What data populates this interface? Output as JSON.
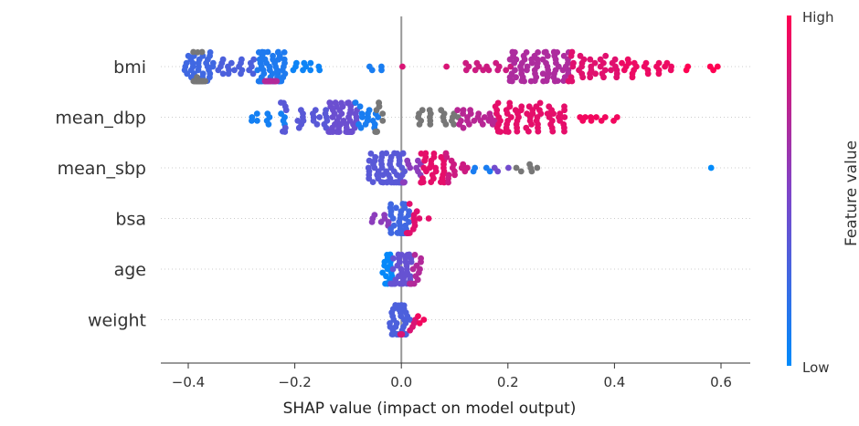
{
  "chart_data": {
    "type": "scatter",
    "subtype": "beeswarm",
    "title": "",
    "xlabel": "SHAP value (impact on model output)",
    "ylabel": "",
    "xlim": [
      -0.45,
      0.65
    ],
    "xticks": [
      -0.4,
      -0.2,
      0.0,
      0.2,
      0.4,
      0.6
    ],
    "xtick_labels": [
      "−0.4",
      "−0.2",
      "0.0",
      "0.2",
      "0.4",
      "0.6"
    ],
    "grid": false,
    "zero_line": true,
    "colorbar": {
      "label": "Feature value",
      "high_label": "High",
      "low_label": "Low",
      "low_color": "#008bfb",
      "mid_color": "#7f44c8",
      "high_color": "#ff0052"
    },
    "missing_value_color": "#777777",
    "features": [
      "bmi",
      "mean_dbp",
      "mean_sbp",
      "bsa",
      "age",
      "weight"
    ],
    "series": [
      {
        "feature": "bmi",
        "groups": [
          {
            "x": [
              -0.4,
              -0.385,
              -0.37,
              -0.355
            ],
            "n": 30,
            "fv": 0.25
          },
          {
            "x": [
              -0.385,
              -0.38,
              -0.375
            ],
            "n": 36,
            "fv": -1
          },
          {
            "x": [
              -0.34,
              -0.32,
              -0.3,
              -0.28
            ],
            "n": 20,
            "fv": 0.3
          },
          {
            "x": [
              -0.265,
              -0.255,
              -0.245,
              -0.235,
              -0.225
            ],
            "n": 60,
            "fv": 0.12
          },
          {
            "x": [
              -0.25,
              -0.24
            ],
            "n": 14,
            "fv": 0.7
          },
          {
            "x": [
              -0.2,
              -0.18,
              -0.165,
              -0.15
            ],
            "n": 10,
            "fv": 0.05
          },
          {
            "x": [
              -0.06,
              -0.035
            ],
            "n": 4,
            "fv": 0.1
          },
          {
            "x": [
              0.005,
              0.09
            ],
            "n": 2,
            "fv": 0.85
          },
          {
            "x": [
              0.12,
              0.14,
              0.16,
              0.18,
              0.2
            ],
            "n": 14,
            "fv": 0.8
          },
          {
            "x": [
              0.21,
              0.23,
              0.25,
              0.27,
              0.29,
              0.31
            ],
            "n": 70,
            "fv": 0.68
          },
          {
            "x": [
              0.32,
              0.34,
              0.36,
              0.38,
              0.4
            ],
            "n": 36,
            "fv": 0.88
          },
          {
            "x": [
              0.42,
              0.44,
              0.46,
              0.48,
              0.5
            ],
            "n": 22,
            "fv": 0.93
          },
          {
            "x": [
              0.54,
              0.58,
              0.59
            ],
            "n": 5,
            "fv": 1.0
          }
        ]
      },
      {
        "feature": "mean_dbp",
        "groups": [
          {
            "x": [
              -0.275,
              -0.25,
              -0.225
            ],
            "n": 12,
            "fv": 0.08
          },
          {
            "x": [
              -0.22,
              -0.19,
              -0.16,
              -0.14
            ],
            "n": 26,
            "fv": 0.35
          },
          {
            "x": [
              -0.13,
              -0.115,
              -0.1,
              -0.09
            ],
            "n": 60,
            "fv": 0.42
          },
          {
            "x": [
              -0.08,
              -0.065,
              -0.05
            ],
            "n": 16,
            "fv": 0.1
          },
          {
            "x": [
              -0.045,
              -0.04
            ],
            "n": 10,
            "fv": -1
          },
          {
            "x": [
              0.035,
              0.06,
              0.08,
              0.1
            ],
            "n": 20,
            "fv": -1
          },
          {
            "x": [
              0.11,
              0.13,
              0.15,
              0.17
            ],
            "n": 22,
            "fv": 0.72
          },
          {
            "x": [
              0.18,
              0.2,
              0.22,
              0.24,
              0.26,
              0.28,
              0.3
            ],
            "n": 65,
            "fv": 0.9
          },
          {
            "x": [
              0.34,
              0.36,
              0.38,
              0.4
            ],
            "n": 10,
            "fv": 0.95
          }
        ]
      },
      {
        "feature": "mean_sbp",
        "groups": [
          {
            "x": [
              -0.055,
              -0.04,
              -0.025,
              -0.01,
              0.0
            ],
            "n": 55,
            "fv": 0.35
          },
          {
            "x": [
              0.01,
              0.03
            ],
            "n": 10,
            "fv": 0.55
          },
          {
            "x": [
              0.04,
              0.06,
              0.08
            ],
            "n": 30,
            "fv": 0.9
          },
          {
            "x": [
              0.09,
              0.1,
              0.12
            ],
            "n": 14,
            "fv": 0.8
          },
          {
            "x": [
              0.14,
              0.16
            ],
            "n": 4,
            "fv": 0.1
          },
          {
            "x": [
              0.18,
              0.2
            ],
            "n": 3,
            "fv": 0.45
          },
          {
            "x": [
              0.22,
              0.245,
              0.25
            ],
            "n": 6,
            "fv": -1
          },
          {
            "x": [
              0.575
            ],
            "n": 1,
            "fv": 0.0
          }
        ]
      },
      {
        "feature": "bsa",
        "groups": [
          {
            "x": [
              -0.05,
              -0.035,
              -0.02
            ],
            "n": 8,
            "fv": 0.55
          },
          {
            "x": [
              -0.015,
              -0.005,
              0.005,
              0.01
            ],
            "n": 40,
            "fv": 0.25
          },
          {
            "x": [
              0.01,
              0.02,
              0.03
            ],
            "n": 12,
            "fv": 0.88
          },
          {
            "x": [
              0.05
            ],
            "n": 1,
            "fv": 0.9
          }
        ]
      },
      {
        "feature": "age",
        "groups": [
          {
            "x": [
              -0.03,
              -0.025,
              -0.02
            ],
            "n": 18,
            "fv": 0.02
          },
          {
            "x": [
              -0.015,
              -0.005,
              0.005,
              0.015
            ],
            "n": 40,
            "fv": 0.4
          },
          {
            "x": [
              0.02,
              0.03
            ],
            "n": 16,
            "fv": 0.7
          }
        ]
      },
      {
        "feature": "weight",
        "groups": [
          {
            "x": [
              -0.015,
              -0.005,
              0.0,
              0.01
            ],
            "n": 40,
            "fv": 0.3
          },
          {
            "x": [
              0.005,
              0.02
            ],
            "n": 8,
            "fv": 0.85
          },
          {
            "x": [
              0.035,
              0.045
            ],
            "n": 3,
            "fv": 0.95
          }
        ]
      }
    ]
  }
}
